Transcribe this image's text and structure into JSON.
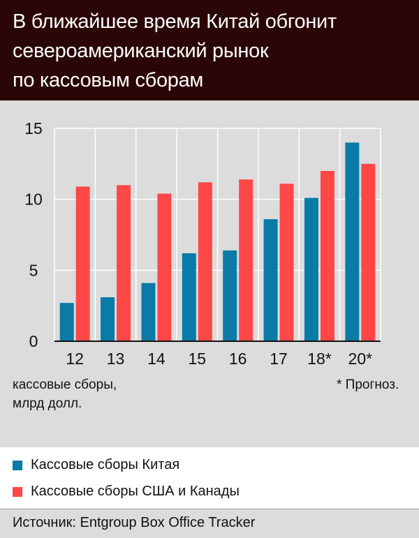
{
  "title_lines": [
    "В ближайшее время Китай обгонит",
    "североамериканский рынок",
    "по кассовым сборам"
  ],
  "unit_note_lines": [
    "кассовые сборы,",
    "млрд долл."
  ],
  "forecast_note": "* Прогноз.",
  "legend": [
    {
      "label": "Кассовые сборы Китая",
      "color": "#0a7ba6"
    },
    {
      "label": "Кассовые сборы США и Канады",
      "color": "#ff4747"
    }
  ],
  "source": "Источник: Entgroup Box Office Tracker",
  "chart_data": {
    "type": "bar",
    "categories": [
      "12",
      "13",
      "14",
      "15",
      "16",
      "17",
      "18*",
      "20*"
    ],
    "series": [
      {
        "name": "Кассовые сборы Китая",
        "color": "#0a7ba6",
        "values": [
          2.7,
          3.1,
          4.1,
          6.2,
          6.4,
          8.6,
          10.1,
          14.0
        ]
      },
      {
        "name": "Кассовые сборы США и Канады",
        "color": "#ff4747",
        "values": [
          10.9,
          11.0,
          10.4,
          11.2,
          11.4,
          11.1,
          12.0,
          12.5
        ]
      }
    ],
    "ylim": [
      0,
      15
    ],
    "yticks": [
      0,
      5,
      10,
      15
    ],
    "grid": true
  }
}
